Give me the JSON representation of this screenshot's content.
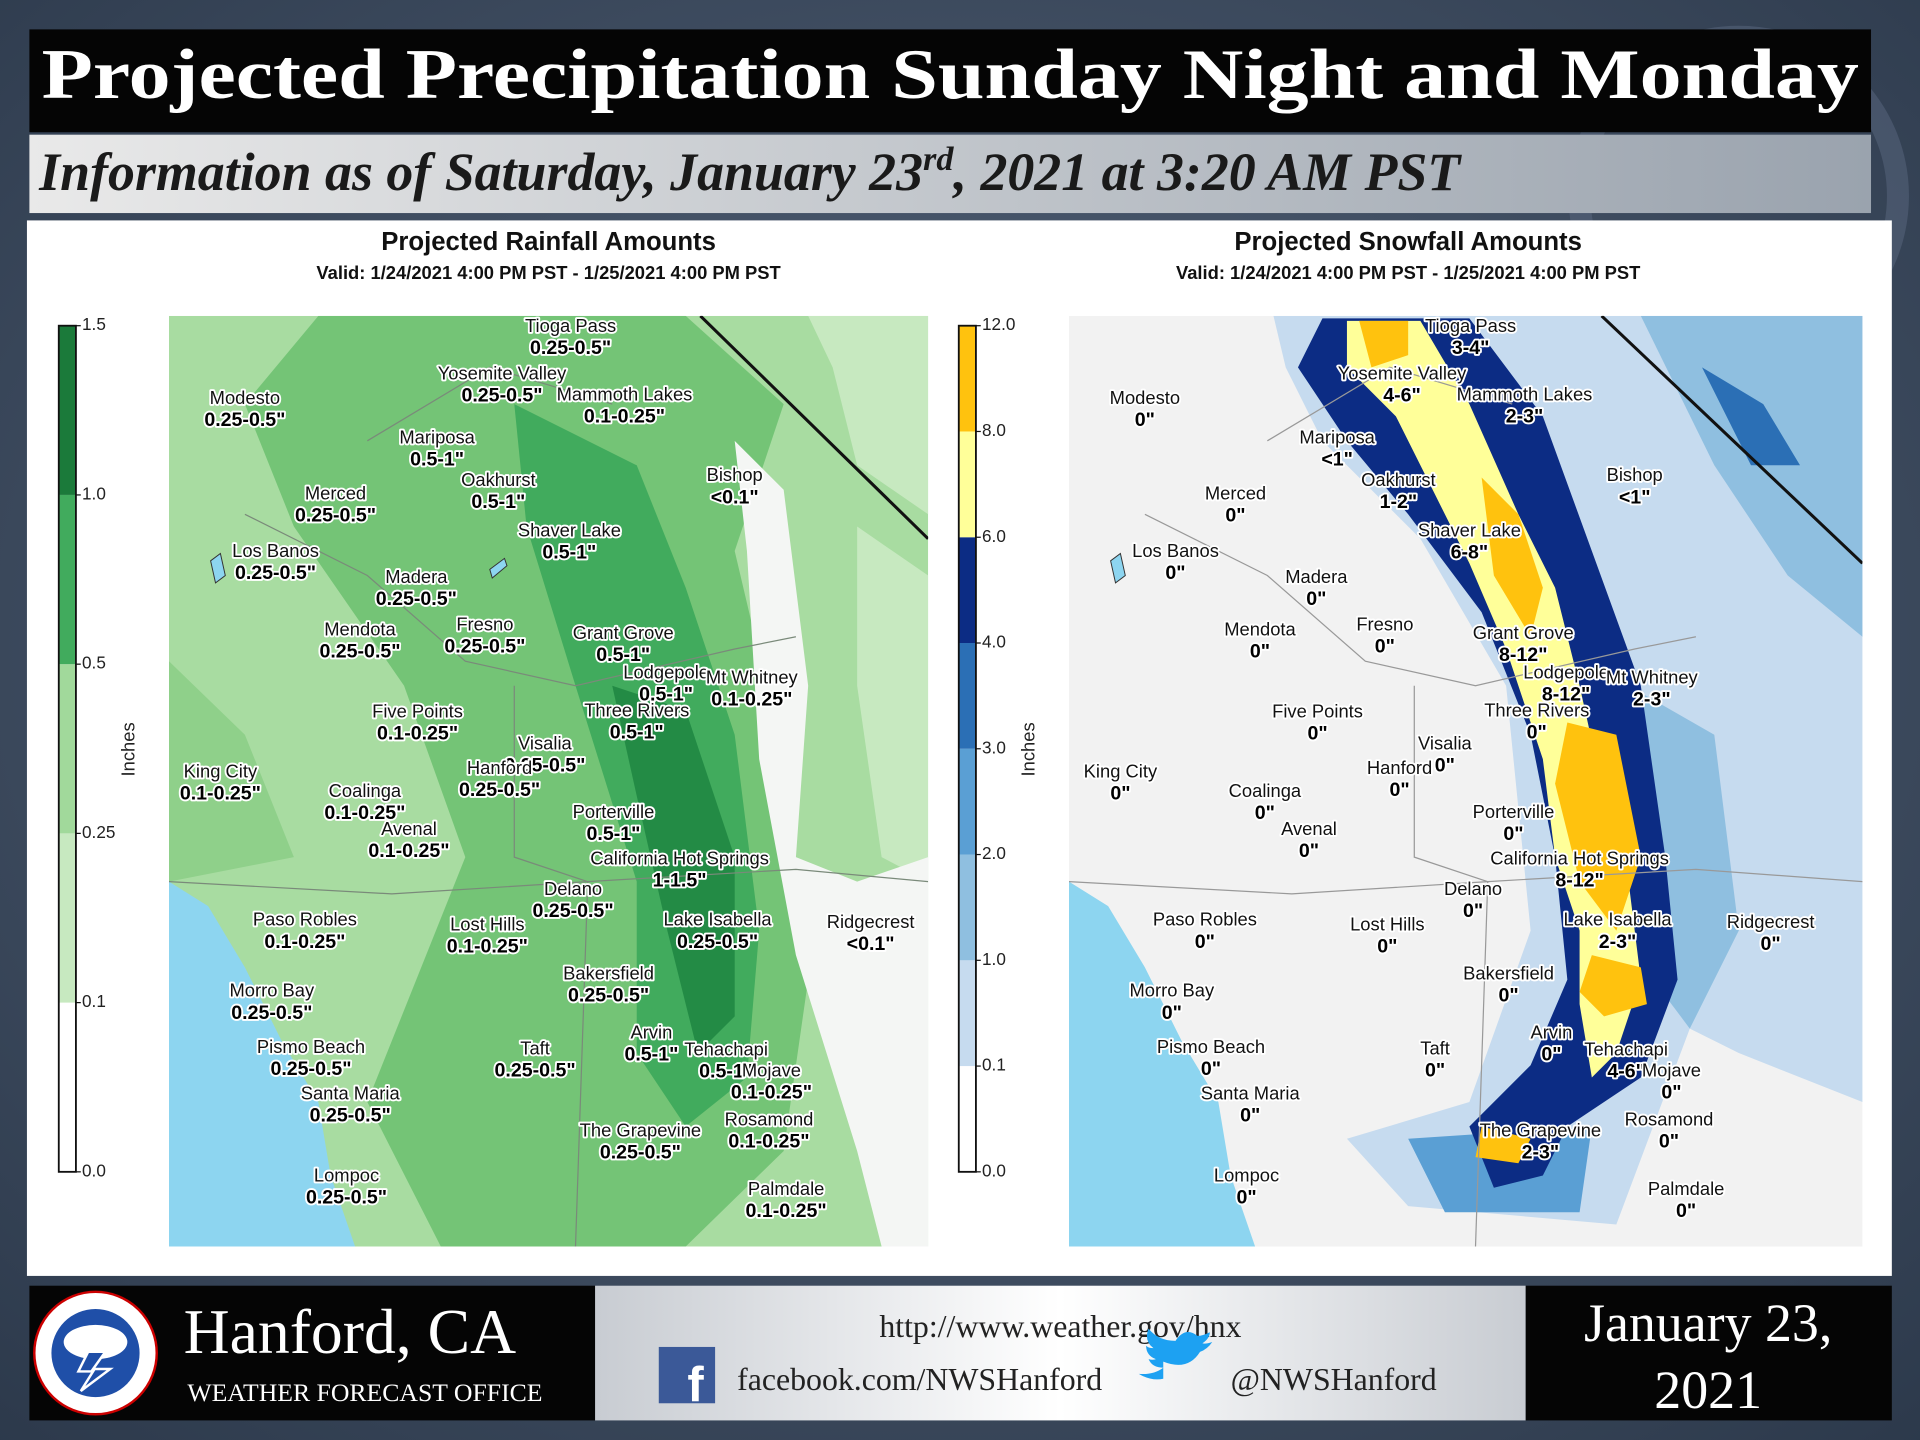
{
  "header": {
    "title": "Projected Precipitation Sunday Night and Monday",
    "subtitle": {
      "before": "Information as of Saturday, January 23",
      "sup": "rd",
      "after": ", 2021 at 3:20 AM PST"
    }
  },
  "maps": [
    {
      "title": "Projected Rainfall Amounts",
      "valid": "Valid: 1/24/2021 4:00 PM PST - 1/25/2021 4:00 PM PST",
      "colorbar": {
        "label": "Inches",
        "ticks": [
          "0.0",
          "0.1",
          "0.25",
          "0.5",
          "1.0",
          "1.5"
        ],
        "colors": [
          "#ffffff",
          "#c7e9c0",
          "#a1d99b",
          "#41ab5d",
          "#1b7a3a"
        ]
      }
    },
    {
      "title": "Projected Snowfall Amounts",
      "valid": "Valid: 1/24/2021 4:00 PM PST - 1/25/2021 4:00 PM PST",
      "colorbar": {
        "label": "Inches",
        "ticks": [
          "0.0",
          "0.1",
          "1.0",
          "2.0",
          "3.0",
          "4.0",
          "6.0",
          "8.0",
          "12.0"
        ],
        "colors": [
          "#ffffff",
          "#c6dbef",
          "#8fbfe0",
          "#5a9fd4",
          "#2b6fb5",
          "#0c2c84",
          "#ffff99",
          "#ffc20e"
        ]
      }
    }
  ],
  "places": [
    {
      "name": "Tioga Pass",
      "rain": "0.25-0.5\"",
      "snow": "3-4\""
    },
    {
      "name": "Yosemite Valley",
      "rain": "0.25-0.5\"",
      "snow": "4-6\""
    },
    {
      "name": "Mammoth Lakes",
      "rain": "0.1-0.25\"",
      "snow": "2-3\""
    },
    {
      "name": "Modesto",
      "rain": "0.25-0.5\"",
      "snow": "0\""
    },
    {
      "name": "Mariposa",
      "rain": "0.5-1\"",
      "snow": "<1\""
    },
    {
      "name": "Bishop",
      "rain": "<0.1\"",
      "snow": "<1\""
    },
    {
      "name": "Oakhurst",
      "rain": "0.5-1\"",
      "snow": "1-2\""
    },
    {
      "name": "Merced",
      "rain": "0.25-0.5\"",
      "snow": "0\""
    },
    {
      "name": "Shaver Lake",
      "rain": "0.5-1\"",
      "snow": "6-8\""
    },
    {
      "name": "Los Banos",
      "rain": "0.25-0.5\"",
      "snow": "0\""
    },
    {
      "name": "Madera",
      "rain": "0.25-0.5\"",
      "snow": "0\""
    },
    {
      "name": "Fresno",
      "rain": "0.25-0.5\"",
      "snow": "0\""
    },
    {
      "name": "Mendota",
      "rain": "0.25-0.5\"",
      "snow": "0\""
    },
    {
      "name": "Grant Grove",
      "rain": "0.5-1\"",
      "snow": "8-12\""
    },
    {
      "name": "Lodgepole",
      "rain": "0.5-1\"",
      "snow": "8-12\""
    },
    {
      "name": "Mt Whitney",
      "rain": "0.1-0.25\"",
      "snow": "2-3\""
    },
    {
      "name": "Three Rivers",
      "rain": "0.5-1\"",
      "snow": "0\""
    },
    {
      "name": "Five Points",
      "rain": "0.1-0.25\"",
      "snow": "0\""
    },
    {
      "name": "Visalia",
      "rain": "0.25-0.5\"",
      "snow": "0\""
    },
    {
      "name": "King City",
      "rain": "0.1-0.25\"",
      "snow": "0\""
    },
    {
      "name": "Hanford",
      "rain": "0.25-0.5\"",
      "snow": "0\""
    },
    {
      "name": "Coalinga",
      "rain": "0.1-0.25\"",
      "snow": "0\""
    },
    {
      "name": "Porterville",
      "rain": "0.5-1\"",
      "snow": "0\""
    },
    {
      "name": "Avenal",
      "rain": "0.1-0.25\"",
      "snow": "0\""
    },
    {
      "name": "California Hot Springs",
      "rain": "1-1.5\"",
      "snow": "8-12\""
    },
    {
      "name": "Delano",
      "rain": "0.25-0.5\"",
      "snow": "0\""
    },
    {
      "name": "Lake Isabella",
      "rain": "0.25-0.5\"",
      "snow": "2-3\""
    },
    {
      "name": "Paso Robles",
      "rain": "0.1-0.25\"",
      "snow": "0\""
    },
    {
      "name": "Ridgecrest",
      "rain": "<0.1\"",
      "snow": "0\""
    },
    {
      "name": "Lost Hills",
      "rain": "0.1-0.25\"",
      "snow": "0\""
    },
    {
      "name": "Bakersfield",
      "rain": "0.25-0.5\"",
      "snow": "0\""
    },
    {
      "name": "Morro Bay",
      "rain": "0.25-0.5\"",
      "snow": "0\""
    },
    {
      "name": "Arvin",
      "rain": "0.5-1\"",
      "snow": "0\""
    },
    {
      "name": "Pismo Beach",
      "rain": "0.25-0.5\"",
      "snow": "0\""
    },
    {
      "name": "Taft",
      "rain": "0.25-0.5\"",
      "snow": "0\""
    },
    {
      "name": "Tehachapi",
      "rain": "0.5-1\"",
      "snow": "4-6\""
    },
    {
      "name": "Mojave",
      "rain": "0.1-0.25\"",
      "snow": "0\""
    },
    {
      "name": "Santa Maria",
      "rain": "0.25-0.5\"",
      "snow": "0\""
    },
    {
      "name": "Rosamond",
      "rain": "0.1-0.25\"",
      "snow": "0\""
    },
    {
      "name": "The Grapevine",
      "rain": "0.25-0.5\"",
      "snow": "2-3\""
    },
    {
      "name": "Lompoc",
      "rain": "0.25-0.5\"",
      "snow": "0\""
    },
    {
      "name": "Palmdale",
      "rain": "0.1-0.25\"",
      "snow": "0\""
    }
  ],
  "footer": {
    "office": "Hanford, CA",
    "subtitle": "WEATHER FORECAST OFFICE",
    "url": "http://www.weather.gov/hnx",
    "facebook": "facebook.com/NWSHanford",
    "twitter": "@NWSHanford",
    "date_line1": "January 23,",
    "date_line2": "2021"
  }
}
